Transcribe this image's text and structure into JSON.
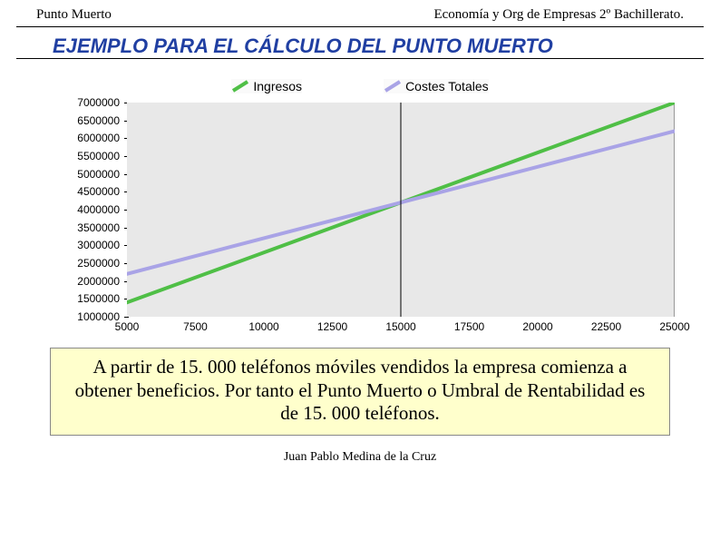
{
  "header": {
    "left": "Punto Muerto",
    "right": "Economía y Org de Empresas 2º Bachillerato."
  },
  "title": "EJEMPLO PARA EL CÁLCULO DEL PUNTO MUERTO",
  "legend": {
    "series1": {
      "label": "Ingresos",
      "color": "#4fbf46"
    },
    "series2": {
      "label": "Costes Totales",
      "color": "#a9a3e6"
    }
  },
  "chart": {
    "type": "line",
    "background_color": "#e8e8e8",
    "text_color": "#000000",
    "xlim": [
      5000,
      25000
    ],
    "ylim": [
      1000000,
      7000000
    ],
    "yticks": [
      1000000,
      1500000,
      2000000,
      2500000,
      3000000,
      3500000,
      4000000,
      4500000,
      5000000,
      5500000,
      6000000,
      6500000,
      7000000
    ],
    "xticks": [
      5000,
      7500,
      10000,
      12500,
      15000,
      17500,
      20000,
      22500,
      25000
    ],
    "series": [
      {
        "name": "Ingresos",
        "stroke": "#4fbf46",
        "stroke_width": 4,
        "points": [
          [
            5000,
            1400000
          ],
          [
            25000,
            7000000
          ]
        ]
      },
      {
        "name": "Costes Totales",
        "stroke": "#a9a3e6",
        "stroke_width": 4,
        "points": [
          [
            5000,
            2200000
          ],
          [
            25000,
            6200000
          ]
        ]
      }
    ],
    "crosshair_x": 15000,
    "crosshair_color": "#000000",
    "axis_line_color": "#000000"
  },
  "callout_text": "A partir de 15. 000 teléfonos móviles vendidos la empresa comienza a obtener beneficios. Por tanto el Punto Muerto o Umbral de Rentabilidad es de 15. 000 teléfonos.",
  "footer": "Juan Pablo Medina de la Cruz"
}
